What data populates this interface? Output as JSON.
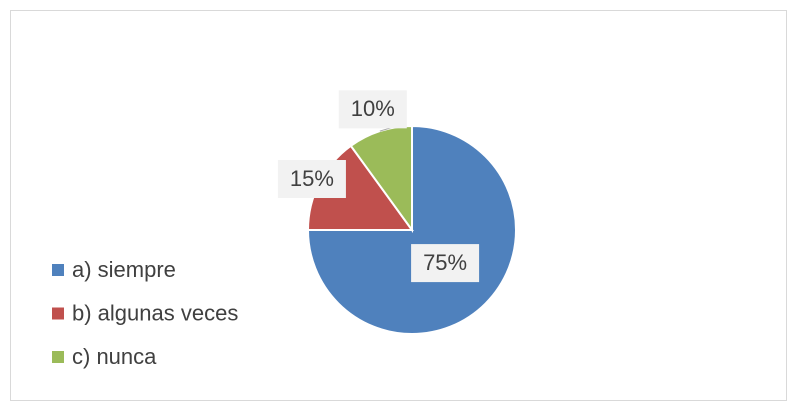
{
  "chart_data": {
    "type": "pie",
    "categories": [
      "a) siempre",
      "b) algunas veces",
      "c) nunca"
    ],
    "values": [
      75,
      15,
      10
    ],
    "value_labels": [
      "75%",
      "15%",
      "10%"
    ],
    "colors": [
      "#4f81bd",
      "#c0504d",
      "#9bbb59"
    ],
    "legend": "left"
  }
}
